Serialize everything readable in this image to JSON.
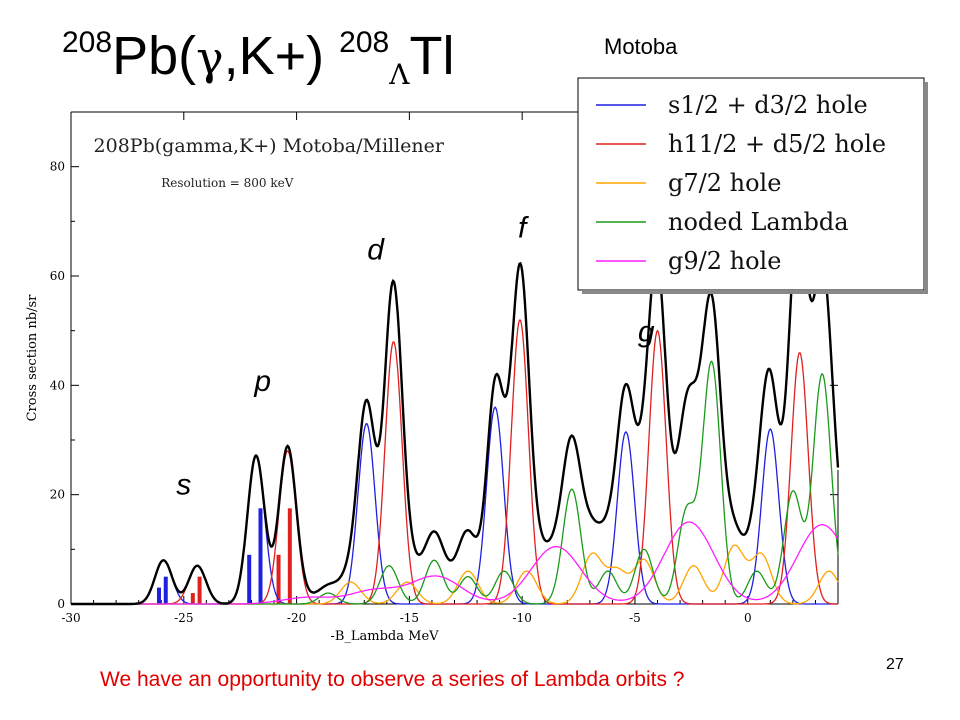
{
  "slide": {
    "title_parts": {
      "mass_a": "208",
      "target": "Pb(",
      "gamma": "γ",
      "reaction": ",K+) ",
      "mass_b": "208",
      "lambda": "Λ",
      "product": "Tl"
    },
    "author": "Motoba",
    "footer": "We have an opportunity to observe a series of Lambda orbits ?",
    "page_number": "27",
    "shell_labels": [
      {
        "text": "s",
        "x": -25.0,
        "y": 20
      },
      {
        "text": "p",
        "x": -21.5,
        "y": 39
      },
      {
        "text": "d",
        "x": -16.5,
        "y": 63
      },
      {
        "text": "f",
        "x": -10.0,
        "y": 67
      },
      {
        "text": "g",
        "x": -4.5,
        "y": 48
      }
    ]
  },
  "chart_data": {
    "type": "line",
    "title": "208Pb(gamma,K+) Motoba/Millener",
    "subtitle": "Resolution = 800 keV",
    "xlabel": "-B_Lambda MeV",
    "ylabel": "Cross section nb/sr",
    "xlim": [
      -30,
      4
    ],
    "ylim": [
      0,
      90
    ],
    "x_ticks": [
      -30,
      -25,
      -20,
      -15,
      -10,
      -5,
      0
    ],
    "y_ticks": [
      0,
      20,
      40,
      60,
      80
    ],
    "legend_position": "top-right",
    "series": [
      {
        "name": "s1/2 + d3/2 hole",
        "color": "#1f1fe0",
        "sigma": 0.38,
        "peaks": [
          [
            -25.9,
            8
          ],
          [
            -21.8,
            27
          ],
          [
            -16.9,
            33
          ],
          [
            -11.2,
            36
          ],
          [
            -5.4,
            31.5
          ],
          [
            1.0,
            32
          ]
        ]
      },
      {
        "name": "h11/2 + d5/2 hole",
        "color": "#e01f1f",
        "sigma": 0.38,
        "peaks": [
          [
            -24.4,
            7
          ],
          [
            -20.4,
            28
          ],
          [
            -15.7,
            48
          ],
          [
            -10.1,
            52
          ],
          [
            -4.0,
            50
          ],
          [
            2.3,
            46
          ]
        ]
      },
      {
        "name": "g7/2 hole",
        "color": "#ffa500",
        "sigma": 0.45,
        "peaks": [
          [
            -17.6,
            4
          ],
          [
            -15.1,
            4
          ],
          [
            -12.4,
            6
          ],
          [
            -9.8,
            6
          ],
          [
            -6.9,
            9
          ],
          [
            -5.8,
            6
          ],
          [
            -4.6,
            8
          ],
          [
            -2.4,
            7
          ],
          [
            -0.6,
            10.5
          ],
          [
            0.6,
            9
          ],
          [
            3.6,
            6
          ]
        ]
      },
      {
        "name": "noded Lambda",
        "color": "#1a9a1a",
        "sigma": 0.4,
        "peaks": [
          [
            -18.6,
            2
          ],
          [
            -15.9,
            7
          ],
          [
            -13.9,
            8
          ],
          [
            -12.4,
            5
          ],
          [
            -10.8,
            6
          ],
          [
            -7.8,
            21
          ],
          [
            -6.2,
            6
          ],
          [
            -4.6,
            10
          ],
          [
            -2.7,
            17
          ],
          [
            -1.6,
            44
          ],
          [
            0.4,
            6
          ],
          [
            2.0,
            20.5
          ],
          [
            3.3,
            42
          ]
        ]
      },
      {
        "name": "g9/2 hole",
        "color": "#ff1fff",
        "sigma": 1.1,
        "peaks": [
          [
            -19.5,
            1.2
          ],
          [
            -16.5,
            2.5
          ],
          [
            -13.8,
            5
          ],
          [
            -8.5,
            10.5
          ],
          [
            -2.6,
            15
          ],
          [
            3.3,
            14.5
          ]
        ]
      },
      {
        "name": "",
        "color": "#000000",
        "sigma": 0,
        "peaks": []
      }
    ],
    "stick_bars": [
      {
        "x": -26.1,
        "h": 3.0,
        "color": "#1f1fe0"
      },
      {
        "x": -25.8,
        "h": 5.0,
        "color": "#1f1fe0"
      },
      {
        "x": -24.6,
        "h": 2.0,
        "color": "#e01f1f"
      },
      {
        "x": -24.3,
        "h": 5.0,
        "color": "#e01f1f"
      },
      {
        "x": -22.1,
        "h": 9.0,
        "color": "#1f1fe0"
      },
      {
        "x": -21.6,
        "h": 17.5,
        "color": "#1f1fe0"
      },
      {
        "x": -20.8,
        "h": 9.0,
        "color": "#e01f1f"
      },
      {
        "x": -20.3,
        "h": 17.5,
        "color": "#e01f1f"
      }
    ]
  }
}
